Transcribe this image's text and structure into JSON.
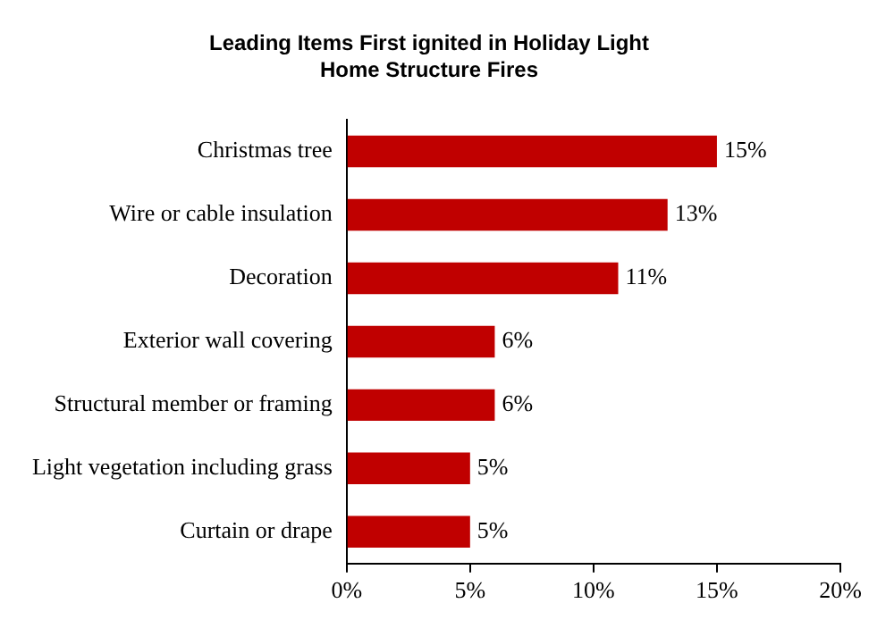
{
  "chart_data": {
    "type": "bar",
    "orientation": "horizontal",
    "title": "Leading Items First ignited in Holiday Light Home Structure Fires",
    "categories": [
      "Christmas tree",
      "Wire or cable insulation",
      "Decoration",
      "Exterior wall covering",
      "Structural member or framing",
      "Light vegetation including grass",
      "Curtain or drape"
    ],
    "values": [
      15,
      13,
      11,
      6,
      6,
      5,
      5
    ],
    "value_labels": [
      "15%",
      "13%",
      "11%",
      "6%",
      "6%",
      "5%",
      "5%"
    ],
    "color": "#c00000",
    "xlim": [
      0,
      20
    ],
    "xticks": [
      {
        "value": 0,
        "label": "0%"
      },
      {
        "value": 5,
        "label": "5%"
      },
      {
        "value": 10,
        "label": "10%"
      },
      {
        "value": 15,
        "label": "15%"
      },
      {
        "value": 20,
        "label": "20%"
      }
    ],
    "grid": false,
    "legend": false
  }
}
